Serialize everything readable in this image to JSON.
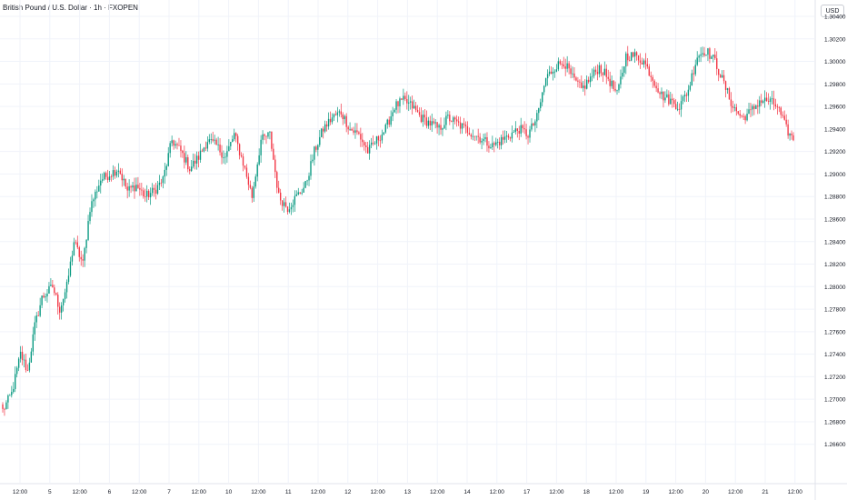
{
  "header": {
    "title": "British Pound / U.S. Dollar · 1h · FXOPEN",
    "currency": "USD"
  },
  "chart_data": {
    "type": "candlestick",
    "title": "British Pound / U.S. Dollar · 1h · FXOPEN",
    "ylabel": "USD",
    "ylim": [
      1.264,
      1.304
    ],
    "yticks": [
      "1.30400",
      "1.30200",
      "1.30000",
      "1.29800",
      "1.29600",
      "1.29400",
      "1.29200",
      "1.29000",
      "1.28800",
      "1.28600",
      "1.28400",
      "1.28200",
      "1.28000",
      "1.27800",
      "1.27600",
      "1.27400",
      "1.27200",
      "1.27000",
      "1.26800",
      "1.26600"
    ],
    "xticks": [
      "12:00",
      "5",
      "12:00",
      "6",
      "12:00",
      "7",
      "12:00",
      "10",
      "12:00",
      "11",
      "12:00",
      "12",
      "12:00",
      "13",
      "12:00",
      "14",
      "12:00",
      "17",
      "12:00",
      "18",
      "12:00",
      "19",
      "12:00",
      "20",
      "12:00",
      "21",
      "12:00"
    ],
    "grid": true,
    "colors": {
      "up": "#089981",
      "down": "#f23645",
      "grid": "#f0f3fa",
      "axis_text": "#131722"
    },
    "close_anchors": [
      [
        0,
        1.269
      ],
      [
        5,
        1.2705
      ],
      [
        10,
        1.274
      ],
      [
        14,
        1.2725
      ],
      [
        18,
        1.2765
      ],
      [
        22,
        1.279
      ],
      [
        28,
        1.28
      ],
      [
        32,
        1.278
      ],
      [
        36,
        1.28
      ],
      [
        40,
        1.284
      ],
      [
        45,
        1.282
      ],
      [
        49,
        1.287
      ],
      [
        55,
        1.2895
      ],
      [
        60,
        1.29
      ],
      [
        65,
        1.2905
      ],
      [
        70,
        1.2885
      ],
      [
        75,
        1.289
      ],
      [
        80,
        1.288
      ],
      [
        85,
        1.2885
      ],
      [
        90,
        1.2895
      ],
      [
        95,
        1.293
      ],
      [
        100,
        1.292
      ],
      [
        105,
        1.2905
      ],
      [
        110,
        1.2915
      ],
      [
        115,
        1.293
      ],
      [
        120,
        1.2925
      ],
      [
        125,
        1.2915
      ],
      [
        130,
        1.2935
      ],
      [
        135,
        1.291
      ],
      [
        140,
        1.288
      ],
      [
        145,
        1.293
      ],
      [
        150,
        1.2935
      ],
      [
        155,
        1.288
      ],
      [
        160,
        1.287
      ],
      [
        165,
        1.288
      ],
      [
        170,
        1.289
      ],
      [
        175,
        1.292
      ],
      [
        180,
        1.294
      ],
      [
        185,
        1.295
      ],
      [
        190,
        1.2955
      ],
      [
        195,
        1.294
      ],
      [
        200,
        1.2935
      ],
      [
        205,
        1.292
      ],
      [
        210,
        1.293
      ],
      [
        215,
        1.294
      ],
      [
        220,
        1.296
      ],
      [
        225,
        1.2965
      ],
      [
        230,
        1.296
      ],
      [
        235,
        1.295
      ],
      [
        240,
        1.2945
      ],
      [
        245,
        1.294
      ],
      [
        250,
        1.295
      ],
      [
        255,
        1.2945
      ],
      [
        260,
        1.294
      ],
      [
        265,
        1.2935
      ],
      [
        270,
        1.293
      ],
      [
        275,
        1.2925
      ],
      [
        280,
        1.293
      ],
      [
        285,
        1.2935
      ],
      [
        290,
        1.294
      ],
      [
        295,
        1.2935
      ],
      [
        300,
        1.295
      ],
      [
        305,
        1.2985
      ],
      [
        310,
        1.2995
      ],
      [
        315,
        1.3
      ],
      [
        320,
        1.2985
      ],
      [
        325,
        1.2975
      ],
      [
        330,
        1.2985
      ],
      [
        335,
        1.2995
      ],
      [
        340,
        1.2985
      ],
      [
        345,
        1.297
      ],
      [
        350,
        1.3005
      ],
      [
        355,
        1.3005
      ],
      [
        360,
        1.3
      ],
      [
        365,
        1.2985
      ],
      [
        370,
        1.297
      ],
      [
        375,
        1.2965
      ],
      [
        380,
        1.296
      ],
      [
        385,
        1.2975
      ],
      [
        390,
        1.3005
      ],
      [
        395,
        1.301
      ],
      [
        400,
        1.3
      ],
      [
        405,
        1.298
      ],
      [
        410,
        1.296
      ],
      [
        415,
        1.295
      ],
      [
        420,
        1.2955
      ],
      [
        425,
        1.2965
      ],
      [
        430,
        1.2965
      ],
      [
        435,
        1.296
      ],
      [
        440,
        1.294
      ],
      [
        444,
        1.293
      ]
    ]
  }
}
